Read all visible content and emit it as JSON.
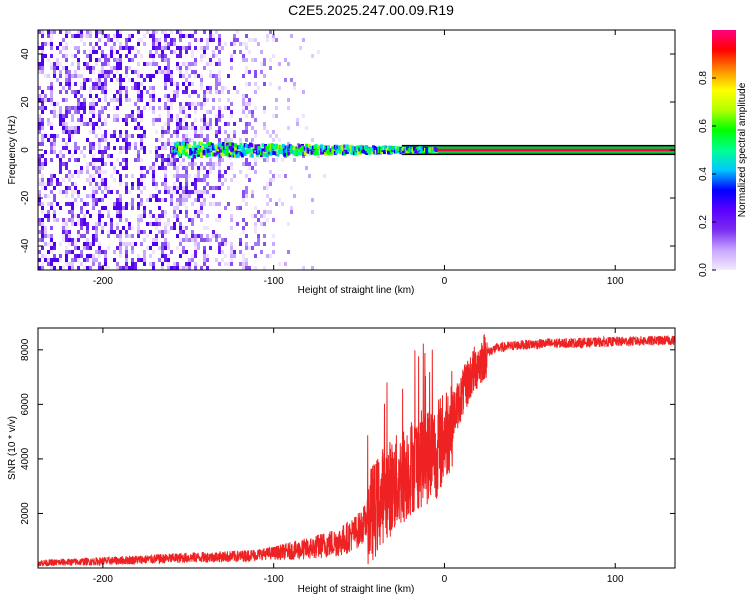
{
  "title": "C2E5.2025.247.00.09.R19",
  "chart_data": [
    {
      "type": "heatmap",
      "xlabel": "Height of straight line (km)",
      "ylabel": "Frequency (Hz)",
      "xlim": [
        -238,
        135
      ],
      "ylim": [
        -50,
        50
      ],
      "x_ticks": [
        -200,
        -100,
        0,
        100
      ],
      "x_tick_labels": [
        "-200",
        "-100",
        "0",
        "100"
      ],
      "y_ticks": [
        -40,
        -20,
        0,
        20,
        40
      ],
      "y_tick_labels": [
        "-40",
        "-20",
        "0",
        "20",
        "40"
      ],
      "colorbar": {
        "label": "Normalized spectral amplitude",
        "range": [
          0,
          1
        ],
        "ticks": [
          0,
          0.2,
          0.4,
          0.6,
          0.8
        ],
        "tick_labels": [
          "0.0",
          "0.2",
          "0.4",
          "0.6",
          "0.8"
        ],
        "colors": [
          "#f4eaff",
          "#c8a6ff",
          "#7a2cf0",
          "#5a00ff",
          "#0000ff",
          "#00c8ff",
          "#00ff90",
          "#00ff00",
          "#b4ff00",
          "#ffff00",
          "#ff8c00",
          "#ff0000",
          "#ff0080"
        ]
      },
      "band": {
        "freq_hz": 0,
        "halfwidth_hz": 1.5,
        "start_km": -25,
        "end_km": 135
      },
      "noise_extent_km": [
        -238,
        -80
      ],
      "grid": false
    },
    {
      "type": "line",
      "xlabel": "Height of straight line (km)",
      "ylabel": "SNR (10 * v/v)",
      "xlim": [
        -238,
        135
      ],
      "ylim": [
        0,
        8800
      ],
      "x_ticks": [
        -200,
        -100,
        0,
        100
      ],
      "x_tick_labels": [
        "-200",
        "-100",
        "0",
        "100"
      ],
      "y_ticks": [
        2000,
        4000,
        6000,
        8000
      ],
      "y_tick_labels": [
        "2000",
        "4000",
        "6000",
        "8000"
      ],
      "series": [
        {
          "color": "#ee2222",
          "x": [
            -238,
            -200,
            -150,
            -120,
            -100,
            -80,
            -60,
            -50,
            -40,
            -35,
            -30,
            -25,
            -20,
            -15,
            -10,
            -5,
            0,
            5,
            10,
            15,
            20,
            25,
            30,
            40,
            50,
            60,
            80,
            100,
            120,
            135
          ],
          "y": [
            180,
            250,
            380,
            430,
            550,
            700,
            1000,
            1400,
            2200,
            2800,
            3000,
            3300,
            3700,
            3950,
            4100,
            4300,
            4800,
            5600,
            6300,
            7000,
            7500,
            7900,
            8050,
            8150,
            8200,
            8230,
            8260,
            8300,
            8330,
            8350
          ]
        }
      ],
      "grid": false
    }
  ]
}
